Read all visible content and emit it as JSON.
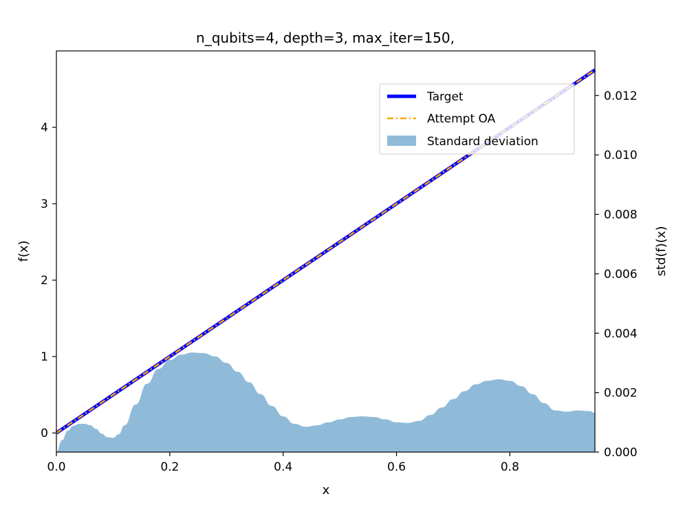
{
  "chart_data": {
    "type": "line",
    "title": "n_qubits=4, depth=3, max_iter=150,",
    "xlabel": "x",
    "ylabel": "f(x)",
    "y2label": "std(f)(x)",
    "xlim": [
      0.0,
      0.95
    ],
    "ylim": [
      -0.25,
      5.0
    ],
    "y2lim": [
      0.0,
      0.0135
    ],
    "xticks": [
      "0.0",
      "0.2",
      "0.4",
      "0.6",
      "0.8"
    ],
    "xtick_values": [
      0.0,
      0.2,
      0.4,
      0.6,
      0.8
    ],
    "yticks": [
      "0",
      "1",
      "2",
      "3",
      "4"
    ],
    "ytick_values": [
      0,
      1,
      2,
      3,
      4
    ],
    "y2ticks": [
      "0.000",
      "0.002",
      "0.004",
      "0.006",
      "0.008",
      "0.010",
      "0.012"
    ],
    "y2tick_values": [
      0.0,
      0.002,
      0.004,
      0.006,
      0.008,
      0.01,
      0.012
    ],
    "legend_position": "upper-right",
    "series": [
      {
        "name": "Target",
        "axis": "left",
        "style": "solid",
        "color": "#0000ff",
        "x": [
          0.0,
          0.95
        ],
        "y": [
          0.0,
          4.75
        ]
      },
      {
        "name": "Attempt OA",
        "axis": "left",
        "style": "dashdot",
        "color": "#ffa500",
        "x": [
          0.0,
          0.95
        ],
        "y": [
          0.0,
          4.75
        ]
      },
      {
        "name": "Standard deviation",
        "axis": "right",
        "style": "fill",
        "color": "#1f77b4",
        "opacity": 0.5,
        "x": [
          0.0,
          0.01,
          0.02,
          0.03,
          0.04,
          0.05,
          0.06,
          0.07,
          0.08,
          0.09,
          0.1,
          0.11,
          0.12,
          0.14,
          0.16,
          0.18,
          0.2,
          0.22,
          0.24,
          0.26,
          0.28,
          0.3,
          0.32,
          0.34,
          0.36,
          0.38,
          0.4,
          0.42,
          0.44,
          0.46,
          0.48,
          0.5,
          0.52,
          0.54,
          0.56,
          0.58,
          0.6,
          0.62,
          0.64,
          0.66,
          0.68,
          0.7,
          0.72,
          0.74,
          0.76,
          0.78,
          0.8,
          0.82,
          0.84,
          0.86,
          0.88,
          0.9,
          0.92,
          0.94,
          0.95
        ],
        "y": [
          0.0,
          0.0004,
          0.00072,
          0.00088,
          0.00095,
          0.00095,
          0.0009,
          0.00078,
          0.00062,
          0.0005,
          0.00048,
          0.0006,
          0.0009,
          0.0016,
          0.0023,
          0.0028,
          0.0031,
          0.00328,
          0.00335,
          0.00333,
          0.00322,
          0.003,
          0.0027,
          0.00235,
          0.00195,
          0.00155,
          0.0012,
          0.00095,
          0.00085,
          0.0009,
          0.001,
          0.0011,
          0.00118,
          0.0012,
          0.00118,
          0.0011,
          0.001,
          0.00098,
          0.00105,
          0.00125,
          0.0015,
          0.00178,
          0.00205,
          0.00228,
          0.0024,
          0.00245,
          0.0024,
          0.00222,
          0.00195,
          0.00165,
          0.0014,
          0.00136,
          0.0014,
          0.00138,
          0.00132
        ]
      }
    ]
  }
}
